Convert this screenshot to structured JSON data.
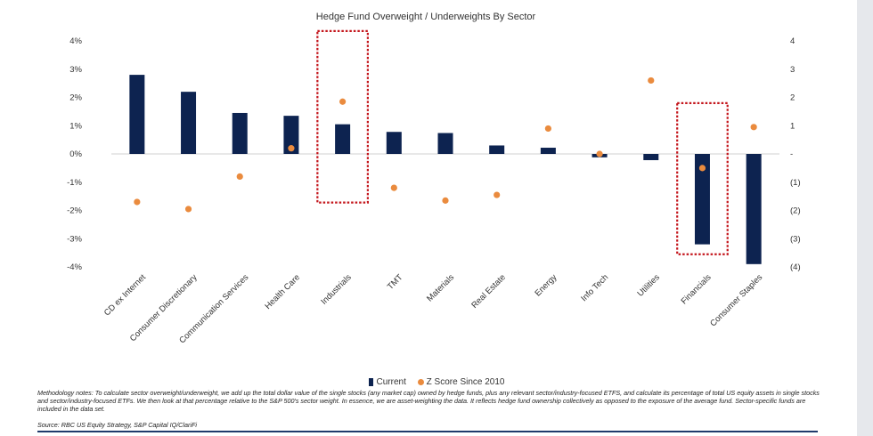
{
  "chart_data": {
    "type": "bar",
    "title": "Hedge Fund Overweight / Underweights By Sector",
    "categories": [
      "CD ex Internet",
      "Consumer Discretionary",
      "Communication Services",
      "Health Care",
      "Industrials",
      "TMT",
      "Materials",
      "Real Estate",
      "Energy",
      "Info Tech",
      "Utilities",
      "Financials",
      "Consumer Staples"
    ],
    "series": [
      {
        "name": "Current",
        "kind": "bar",
        "axis": "left",
        "color": "#0d2350",
        "values": [
          2.8,
          2.2,
          1.45,
          1.35,
          1.05,
          0.78,
          0.74,
          0.3,
          0.22,
          -0.12,
          -0.22,
          -3.2,
          -3.9
        ]
      },
      {
        "name": "Z Score Since 2010",
        "kind": "scatter",
        "axis": "right",
        "color": "#ea8b3e",
        "values": [
          -1.7,
          -1.95,
          -0.8,
          0.2,
          1.85,
          -1.2,
          -1.65,
          -1.45,
          0.9,
          0.0,
          2.6,
          -0.5,
          0.95
        ]
      }
    ],
    "left_axis": {
      "ylim": [
        -4,
        4
      ],
      "ticks": [
        "4%",
        "3%",
        "2%",
        "1%",
        "0%",
        "-1%",
        "-2%",
        "-3%",
        "-4%"
      ]
    },
    "right_axis": {
      "ylim": [
        -4,
        4
      ],
      "ticks": [
        "4",
        "3",
        "2",
        "1",
        "-",
        "(1)",
        "(2)",
        "(3)",
        "(4)"
      ]
    },
    "highlight_boxes": [
      "Industrials",
      "Financials"
    ],
    "legend": {
      "current": "Current",
      "zscore": "Z Score Since 2010"
    }
  },
  "notes": "Methodology notes: To calculate sector overweight/underweight, we add up the total dollar value of the single stocks (any market cap) owned by hedge funds, plus any relevant sector/industry-focused ETFS, and calculate its percentage of total US equity assets in single stocks and sector/industry-focused ETFs. We then look at that percentage relative to the S&P 500's sector weight. In essence, we are asset-weighting the data. It reflects hedge fund ownership collectively as opposed to the exposure of the average fund. Sector-specific funds are included in the data set.",
  "source": "Source: RBC US Equity Strategy, S&P Capital IQ/ClariFi"
}
